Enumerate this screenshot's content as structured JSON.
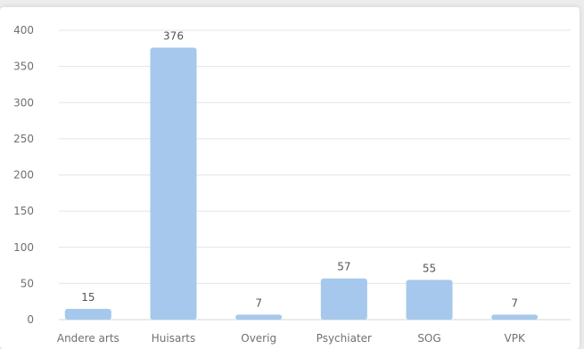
{
  "chart_data": {
    "type": "bar",
    "categories": [
      "Andere arts",
      "Huisarts",
      "Overig",
      "Psychiater",
      "SOG",
      "VPK"
    ],
    "values": [
      15,
      376,
      7,
      57,
      55,
      7
    ],
    "data_labels": [
      "15",
      "376",
      "7",
      "57",
      "55",
      "7"
    ],
    "title": "",
    "xlabel": "",
    "ylabel": "",
    "ylim": [
      0,
      400
    ],
    "yticks": [
      0,
      50,
      100,
      150,
      200,
      250,
      300,
      350,
      400
    ],
    "grid": true,
    "legend": "none",
    "bar_color": "#a6c8ec"
  }
}
